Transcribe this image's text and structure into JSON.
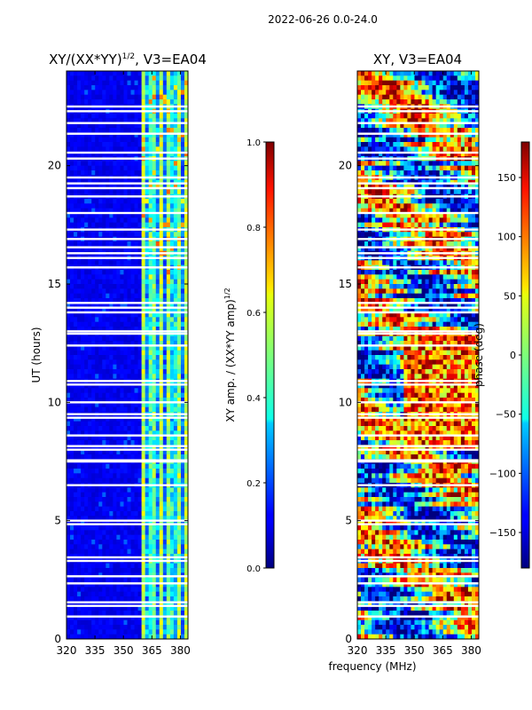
{
  "header": {
    "date_range": "2022-06-26 0.0-24.0"
  },
  "chart_data": [
    {
      "type": "heatmap",
      "title": "XY/(XX*YY)^{1/2}, V3=EA04",
      "title_main": "XY/(XX*YY)",
      "title_exp": "1/2",
      "title_tail": ", V3=EA04",
      "xlabel": "",
      "ylabel": "UT (hours)",
      "xlim": [
        320,
        384
      ],
      "ylim": [
        0,
        24
      ],
      "xticks": [
        320,
        335,
        350,
        365,
        380
      ],
      "yticks": [
        0,
        5,
        10,
        15,
        20
      ],
      "colorbar": {
        "label_main": "XY amp. / (XX*YY amp)",
        "label_exp": "1/2",
        "range": [
          0.0,
          1.0
        ],
        "ticks": [
          "0.0",
          "0.2",
          "0.4",
          "0.6",
          "0.8",
          "1.0"
        ],
        "tick_values": [
          0.0,
          0.2,
          0.4,
          0.6,
          0.8,
          1.0
        ]
      },
      "data_gaps_hours": [
        0.95,
        1.4,
        1.55,
        2.35,
        2.65,
        3.3,
        3.45,
        4.85,
        5.0,
        6.5,
        7.5,
        7.55,
        8.0,
        8.15,
        8.6,
        9.35,
        9.5,
        10.0,
        10.75,
        10.9,
        12.4,
        12.9,
        13.0,
        13.8,
        14.0,
        14.2,
        15.7,
        16.1,
        16.3,
        16.55,
        16.9,
        17.3,
        18.0,
        18.7,
        19.05,
        19.25,
        19.5,
        20.3,
        20.55,
        21.35,
        21.8,
        22.3,
        22.5
      ]
    },
    {
      "type": "heatmap",
      "title": "XY, V3=EA04",
      "xlabel": "frequency (MHz)",
      "ylabel": "",
      "xlim": [
        320,
        384
      ],
      "ylim": [
        0,
        24
      ],
      "xticks": [
        320,
        335,
        350,
        365,
        380
      ],
      "yticks": [
        0,
        5,
        10,
        15,
        20
      ],
      "colorbar": {
        "label": "phase (deg)",
        "range": [
          -180,
          180
        ],
        "ticks": [
          "150",
          "100",
          "50",
          "0",
          "−50",
          "−100",
          "−150"
        ],
        "tick_values": [
          150,
          100,
          50,
          0,
          -50,
          -100,
          -150
        ]
      },
      "data_gaps_hours": [
        0.95,
        1.4,
        1.55,
        2.35,
        2.65,
        3.3,
        3.45,
        4.85,
        5.0,
        6.5,
        7.5,
        7.55,
        8.0,
        8.15,
        8.6,
        9.35,
        9.5,
        10.0,
        10.75,
        10.9,
        12.4,
        12.9,
        13.0,
        13.8,
        14.0,
        14.2,
        15.7,
        16.1,
        16.3,
        16.55,
        16.9,
        17.3,
        18.0,
        18.7,
        19.05,
        19.25,
        19.5,
        20.3,
        20.55,
        21.35,
        21.8,
        22.3,
        22.5
      ]
    }
  ]
}
